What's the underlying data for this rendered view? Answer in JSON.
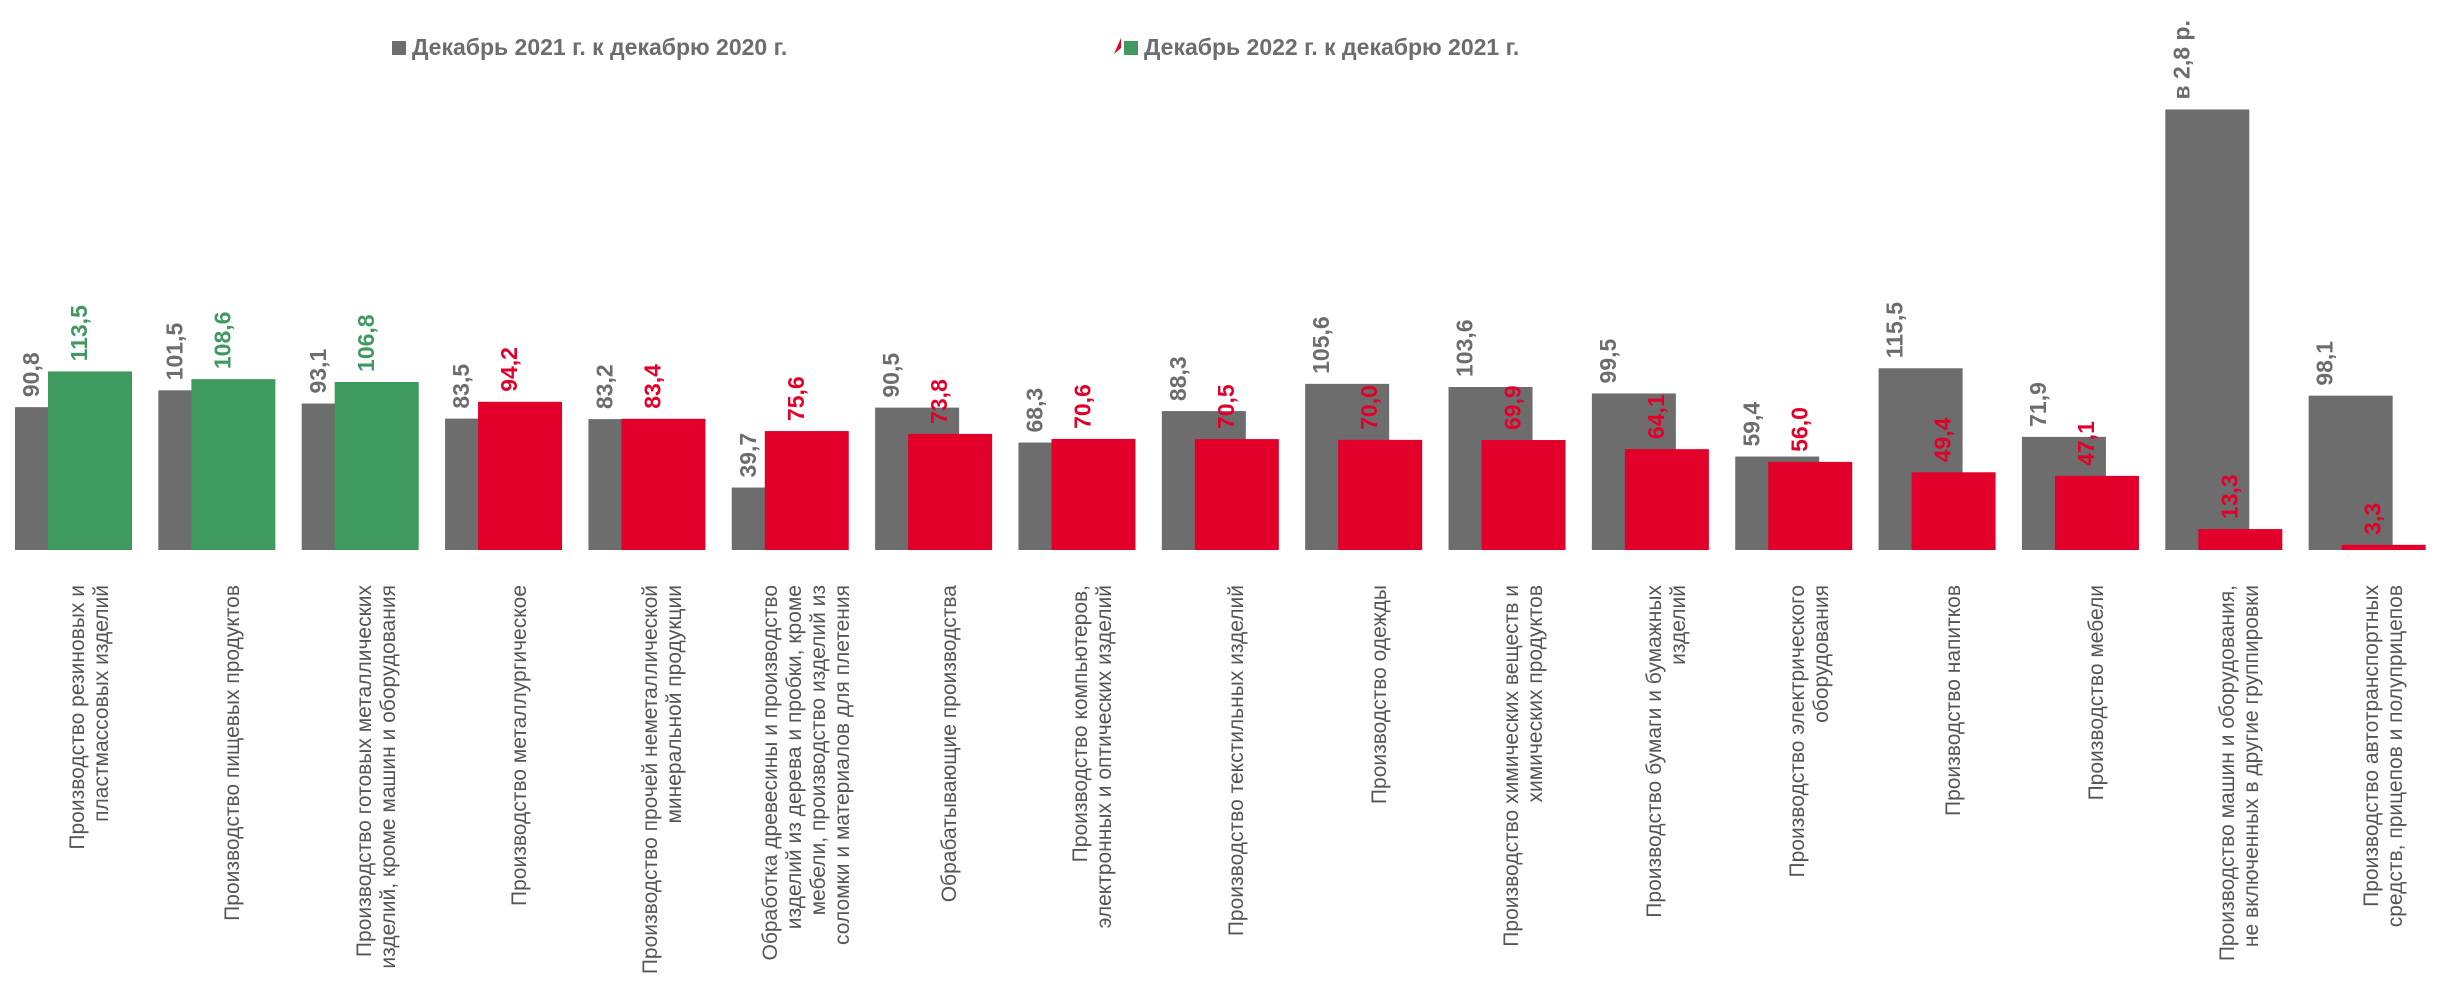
{
  "chart_data": {
    "type": "bar",
    "categories": [
      "Производство резиновых и пластмассовых изделий",
      "Производство пищевых продуктов",
      "Производство готовых металлических изделий, кроме машин и оборудования",
      "Производство металлургическое",
      "Производство прочей неметаллической минеральной продукции",
      "Обработка древесины и производство изделий из дерева и пробки, кроме мебели, производство изделий из соломки и материалов для плетения",
      "Обрабатывающие производства",
      "Производство компьютеров, электронных и оптических изделий",
      "Производство текстильных изделий",
      "Производство одежды",
      "Производство химических веществ и химических продуктов",
      "Производство бумаги и бумажных изделий",
      "Производство электрического оборудования",
      "Производство напитков",
      "Производство мебели",
      "Производство машин и оборудования, не включенных в другие группировки",
      "Производство автотранспортных средств, прицепов и полуприцепов"
    ],
    "series": [
      {
        "name": "Декабрь 2021 г. к декабрю 2020 г.",
        "color": "#6d6d6d",
        "values": [
          90.8,
          101.5,
          93.1,
          83.5,
          83.2,
          39.7,
          90.5,
          68.3,
          88.3,
          105.6,
          103.6,
          99.5,
          59.4,
          115.5,
          71.9,
          280,
          98.1
        ],
        "value_labels": [
          "90,8",
          "101,5",
          "93,1",
          "83,5",
          "83,2",
          "39,7",
          "90,5",
          "68,3",
          "88,3",
          "105,6",
          "103,6",
          "99,5",
          "59,4",
          "115,5",
          "71,9",
          "в 2,8 р.",
          "98,1"
        ]
      },
      {
        "name": "Декабрь 2022 г. к декабрю 2021 г.",
        "colors": [
          "#3f9a60",
          "#3f9a60",
          "#3f9a60",
          "#e2002b",
          "#e2002b",
          "#e2002b",
          "#e2002b",
          "#e2002b",
          "#e2002b",
          "#e2002b",
          "#e2002b",
          "#e2002b",
          "#e2002b",
          "#e2002b",
          "#e2002b",
          "#e2002b",
          "#e2002b"
        ],
        "values": [
          113.5,
          108.6,
          106.8,
          94.2,
          83.4,
          75.6,
          73.8,
          70.6,
          70.5,
          70.0,
          69.9,
          64.1,
          56.0,
          49.4,
          47.1,
          13.3,
          3.3
        ],
        "value_labels": [
          "113,5",
          "108,6",
          "106,8",
          "94,2",
          "83,4",
          "75,6",
          "73,8",
          "70,6",
          "70,5",
          "70,0",
          "69,9",
          "64,1",
          "56,0",
          "49,4",
          "47,1",
          "13,3",
          "3,3"
        ]
      }
    ],
    "ylim": [
      0,
      300
    ]
  }
}
